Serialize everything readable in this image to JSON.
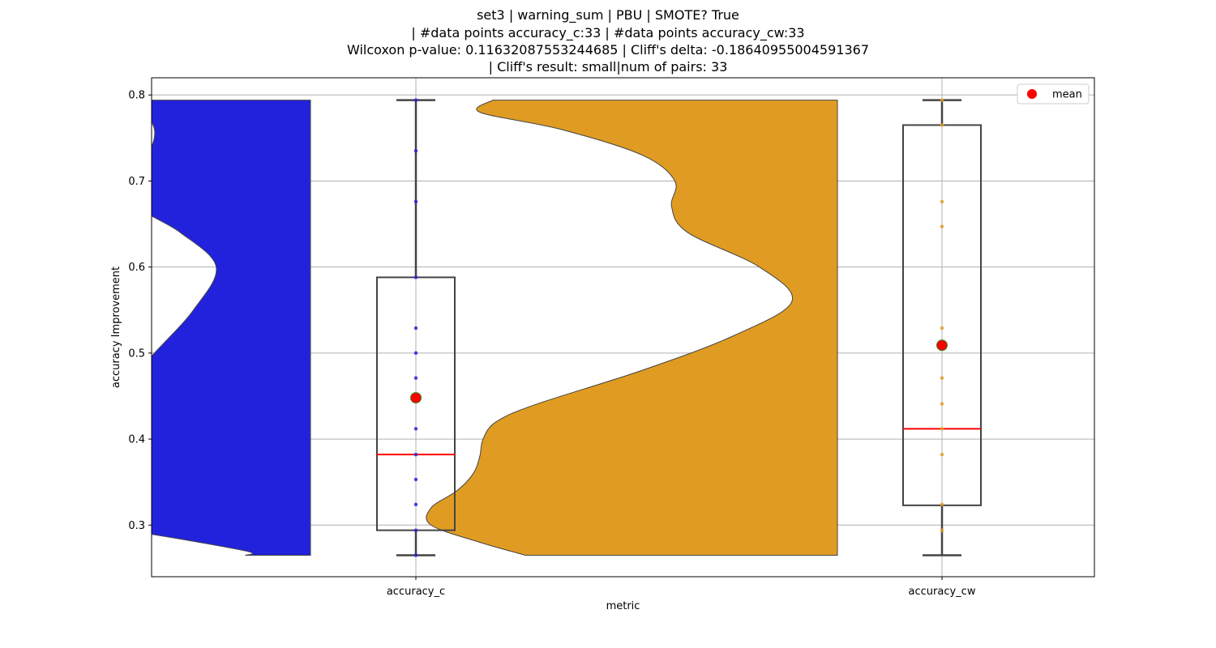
{
  "chart_data": {
    "type": "violin+box+strip",
    "title_lines": [
      "set3 | warning_sum | PBU | SMOTE? True",
      "| #data points accuracy_c:33 | #data points accuracy_cw:33",
      "Wilcoxon p-value: 0.11632087553244685 | Cliff's delta: -0.18640955004591367",
      "| Cliff's result: small|num of pairs: 33"
    ],
    "xlabel": "metric",
    "ylabel": "accuracy Improvement",
    "categories": [
      "accuracy_c",
      "accuracy_cw"
    ],
    "ylim": [
      0.24,
      0.82
    ],
    "yticks": [
      0.3,
      0.4,
      0.5,
      0.6,
      0.7,
      0.8
    ],
    "ytick_labels": [
      "0.3",
      "0.4",
      "0.5",
      "0.6",
      "0.7",
      "0.8"
    ],
    "grid": true,
    "legend": {
      "position": "top-right",
      "entries": [
        {
          "label": "mean",
          "color": "#ff0000"
        }
      ]
    },
    "series": [
      {
        "category": "accuracy_c",
        "violin_color": "#2222dd",
        "point_color": "#2222dd",
        "min": 0.265,
        "q1": 0.294,
        "median": 0.382,
        "q3": 0.588,
        "max": 0.794,
        "mean": 0.448,
        "points": [
          0.265,
          0.294,
          0.324,
          0.353,
          0.382,
          0.412,
          0.471,
          0.5,
          0.529,
          0.588,
          0.676,
          0.735,
          0.794
        ],
        "density": [
          [
            0.265,
            0.02
          ],
          [
            0.27,
            0.02
          ],
          [
            0.29,
            0.05
          ],
          [
            0.3,
            0.07
          ],
          [
            0.32,
            0.1
          ],
          [
            0.34,
            0.1
          ],
          [
            0.36,
            0.095
          ],
          [
            0.38,
            0.085
          ],
          [
            0.4,
            0.074
          ],
          [
            0.45,
            0.06
          ],
          [
            0.5,
            0.048
          ],
          [
            0.55,
            0.036
          ],
          [
            0.6,
            0.029
          ],
          [
            0.64,
            0.04
          ],
          [
            0.67,
            0.053
          ],
          [
            0.7,
            0.055
          ],
          [
            0.73,
            0.05
          ],
          [
            0.76,
            0.048
          ],
          [
            0.79,
            0.053
          ],
          [
            0.794,
            0.056
          ]
        ]
      },
      {
        "category": "accuracy_cw",
        "violin_color": "#e09c22",
        "point_color": "#e09c22",
        "min": 0.265,
        "q1": 0.323,
        "median": 0.412,
        "q3": 0.765,
        "max": 0.794,
        "mean": 0.509,
        "points": [
          0.294,
          0.324,
          0.382,
          0.412,
          0.441,
          0.471,
          0.529,
          0.647,
          0.676,
          0.765,
          0.794
        ],
        "density": [
          [
            0.265,
            0.096
          ],
          [
            0.28,
            0.11
          ],
          [
            0.3,
            0.125
          ],
          [
            0.32,
            0.125
          ],
          [
            0.34,
            0.117
          ],
          [
            0.36,
            0.112
          ],
          [
            0.38,
            0.11
          ],
          [
            0.4,
            0.109
          ],
          [
            0.42,
            0.105
          ],
          [
            0.44,
            0.093
          ],
          [
            0.48,
            0.06
          ],
          [
            0.52,
            0.032
          ],
          [
            0.56,
            0.014
          ],
          [
            0.6,
            0.024
          ],
          [
            0.64,
            0.046
          ],
          [
            0.67,
            0.051
          ],
          [
            0.7,
            0.05
          ],
          [
            0.73,
            0.06
          ],
          [
            0.76,
            0.085
          ],
          [
            0.78,
            0.11
          ],
          [
            0.794,
            0.106
          ]
        ]
      }
    ]
  }
}
